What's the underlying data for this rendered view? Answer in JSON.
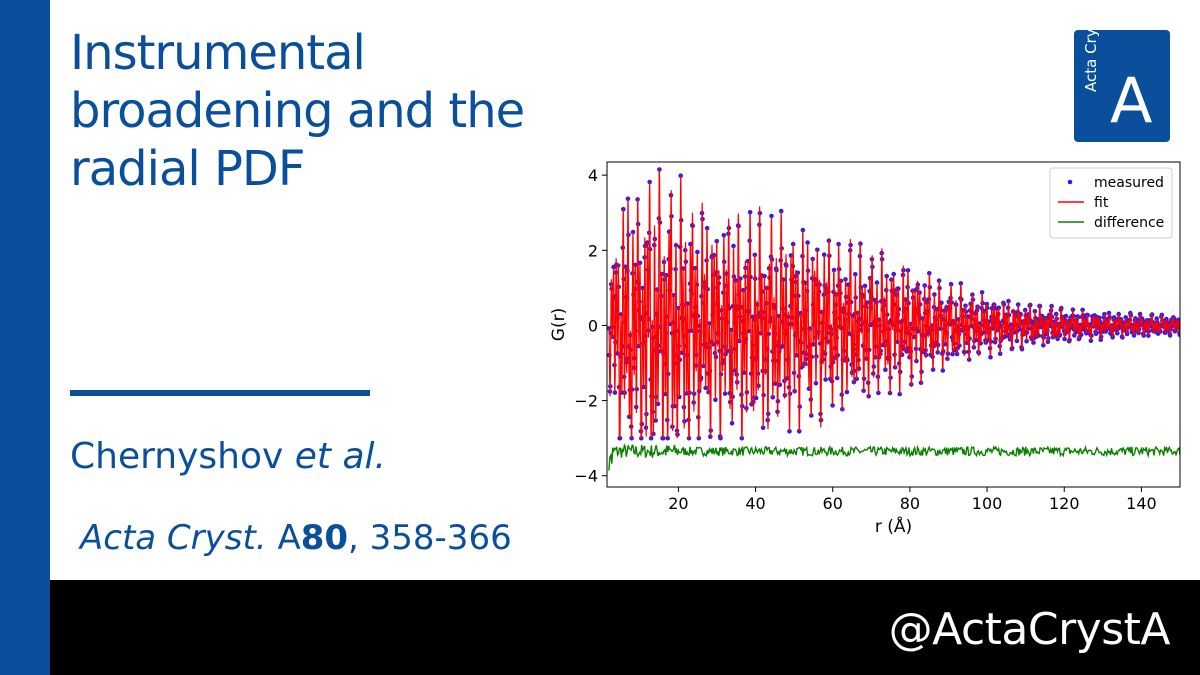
{
  "slide": {
    "title": "Instrumental broadening and the radial PDF",
    "authors": "Chernyshov",
    "authors_etal": "et al.",
    "citation_journal": "Acta Cryst.",
    "citation_section": "A",
    "citation_volume": "80",
    "citation_pages": ", 358-366",
    "handle": "@ActaCrystA",
    "logo_small_text": "Acta Cryst",
    "logo_letter": "A"
  },
  "colors": {
    "brand_blue": "#0a4f9c",
    "bar_black": "#000000",
    "measured": "#1f1fff",
    "fit": "#ff0000",
    "difference": "#0a8000"
  },
  "chart_data": {
    "type": "line",
    "xlabel": "r (Å)",
    "ylabel": "G(r)",
    "xlim": [
      1.5,
      150
    ],
    "ylim": [
      -4.3,
      4.35
    ],
    "xticks": [
      20,
      40,
      60,
      80,
      100,
      120,
      140
    ],
    "yticks": [
      -4,
      -2,
      0,
      2,
      4
    ],
    "legend_position": "top-right",
    "series": [
      {
        "name": "measured",
        "style": "dots",
        "color": "#1f1fff"
      },
      {
        "name": "fit",
        "style": "line",
        "color": "#ff0000"
      },
      {
        "name": "difference",
        "style": "line",
        "color": "#0a8000"
      }
    ],
    "envelope": {
      "x": [
        2,
        5,
        10,
        15,
        20,
        25,
        30,
        40,
        50,
        60,
        70,
        80,
        90,
        100,
        110,
        120,
        130,
        140,
        150
      ],
      "amplitude": [
        1.5,
        3.6,
        3.8,
        4.1,
        3.7,
        3.3,
        3.0,
        3.0,
        2.7,
        2.3,
        2.0,
        1.6,
        1.1,
        0.8,
        0.6,
        0.45,
        0.35,
        0.3,
        0.25
      ]
    },
    "difference_offset": -3.35,
    "difference_amplitude": 0.12
  }
}
